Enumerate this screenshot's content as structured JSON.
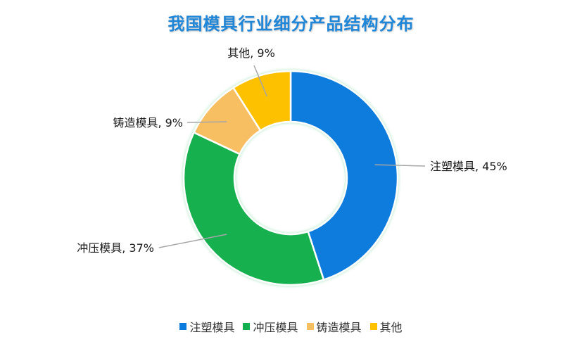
{
  "chart_data": {
    "type": "pie",
    "title": "我国模具行业细分产品结构分布",
    "categories": [
      "注塑模具",
      "冲压模具",
      "铸造模具",
      "其他"
    ],
    "values": [
      45,
      37,
      9,
      9
    ],
    "value_unit": "%",
    "colors": [
      "#0a7bdc",
      "#12b04f",
      "#f8bf62",
      "#fdc102"
    ],
    "data_labels": [
      "注塑模具, 45%",
      "冲压模具, 37%",
      "铸造模具, 9%",
      "其他, 9%"
    ],
    "legend": {
      "position": "bottom",
      "items": [
        "注塑模具",
        "冲压模具",
        "铸造模具",
        "其他"
      ]
    },
    "donut": true
  }
}
